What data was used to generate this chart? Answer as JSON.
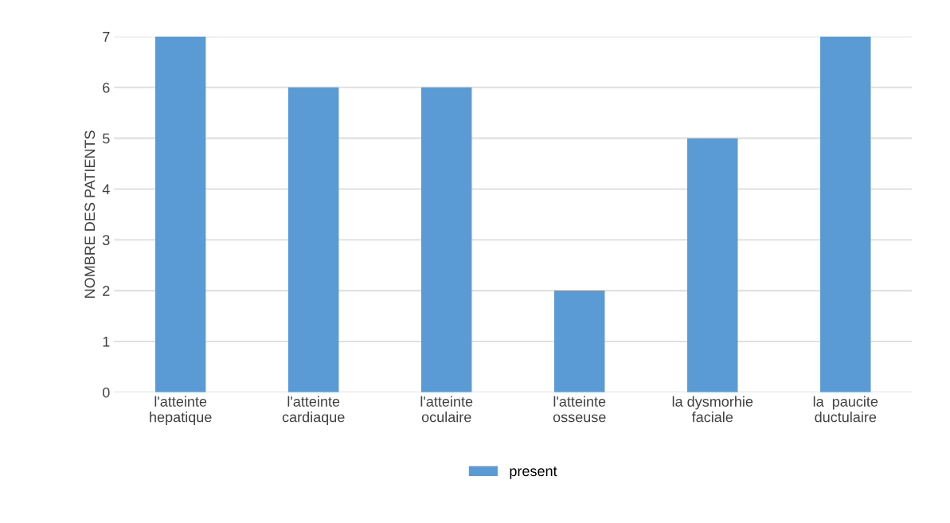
{
  "chart_data": {
    "type": "bar",
    "ylabel": "NOMBRE DES PATIENTS",
    "categories": [
      "l'atteinte\nhepatique",
      "l'atteinte\ncardiaque",
      "l'atteinte\noculaire",
      "l'atteinte\nosseuse",
      "la dysmorhie\nfaciale",
      "la  paucite\nductulaire"
    ],
    "series": [
      {
        "name": "present",
        "color": "#5b9bd5",
        "values": [
          7,
          6,
          6,
          2,
          5,
          7
        ]
      }
    ],
    "ylim": [
      0,
      7
    ],
    "yticks": [
      0,
      1,
      2,
      3,
      4,
      5,
      6,
      7
    ],
    "grid": "y",
    "legend": "bottom"
  }
}
